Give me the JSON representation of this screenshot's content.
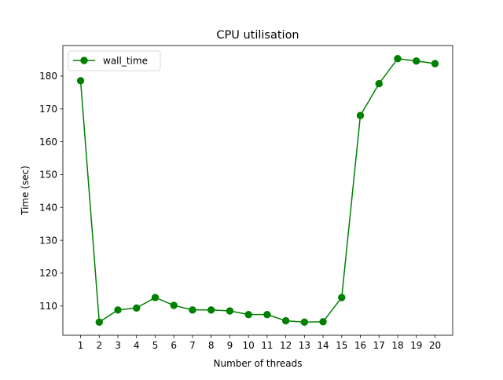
{
  "chart_data": {
    "type": "line",
    "title": "CPU utilisation",
    "xlabel": "Number of threads",
    "ylabel": "Time (sec)",
    "x": [
      1,
      2,
      3,
      4,
      5,
      6,
      7,
      8,
      9,
      10,
      11,
      12,
      13,
      14,
      15,
      16,
      17,
      18,
      19,
      20
    ],
    "series": [
      {
        "name": "wall_time",
        "color": "#008000",
        "marker": "circle",
        "values": [
          178.6,
          105.1,
          108.8,
          109.4,
          112.6,
          110.2,
          108.8,
          108.8,
          108.5,
          107.4,
          107.4,
          105.5,
          105.1,
          105.2,
          112.6,
          168.0,
          177.7,
          185.3,
          184.6,
          183.8
        ]
      }
    ],
    "xticks": [
      "1",
      "2",
      "3",
      "4",
      "5",
      "6",
      "7",
      "8",
      "9",
      "10",
      "11",
      "12",
      "13",
      "14",
      "15",
      "16",
      "17",
      "18",
      "19",
      "20"
    ],
    "yticks": [
      110,
      120,
      130,
      140,
      150,
      160,
      170,
      180
    ],
    "xlim": [
      0.05,
      20.95
    ],
    "ylim": [
      101.1,
      189.3
    ],
    "grid": false,
    "legend": "upper-left"
  }
}
